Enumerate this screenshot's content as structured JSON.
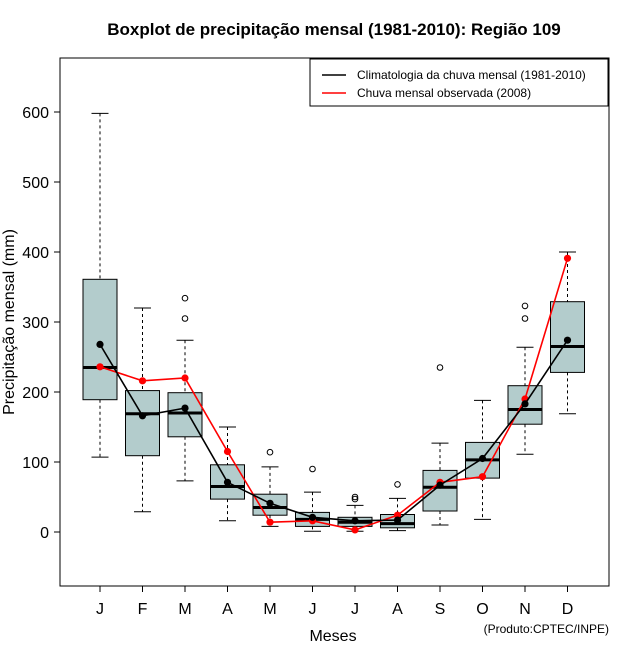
{
  "chart_data": {
    "type": "boxplot",
    "title": "Boxplot de precipitação mensal (1981-2010): Região 109",
    "xlabel": "Meses",
    "ylabel": "Precipitação mensal (mm)",
    "ylim": [
      -75,
      680
    ],
    "yticks": [
      0,
      100,
      200,
      300,
      400,
      500,
      600
    ],
    "categories": [
      "J",
      "F",
      "M",
      "A",
      "M",
      "J",
      "J",
      "A",
      "S",
      "O",
      "N",
      "D"
    ],
    "boxes": [
      {
        "month": "J",
        "whisker_low": 107,
        "q1": 189,
        "median": 235,
        "q3": 361,
        "whisker_high": 598,
        "outliers": []
      },
      {
        "month": "F",
        "whisker_low": 29,
        "q1": 109,
        "median": 169,
        "q3": 202,
        "whisker_high": 320,
        "outliers": []
      },
      {
        "month": "M",
        "whisker_low": 73,
        "q1": 136,
        "median": 170,
        "q3": 199,
        "whisker_high": 274,
        "outliers": [
          305,
          334
        ]
      },
      {
        "month": "A",
        "whisker_low": 16,
        "q1": 47,
        "median": 65,
        "q3": 96,
        "whisker_high": 150,
        "outliers": []
      },
      {
        "month": "M",
        "whisker_low": 8,
        "q1": 24,
        "median": 35,
        "q3": 54,
        "whisker_high": 93,
        "outliers": [
          114
        ]
      },
      {
        "month": "J",
        "whisker_low": 1,
        "q1": 8,
        "median": 18,
        "q3": 28,
        "whisker_high": 57,
        "outliers": [
          90
        ]
      },
      {
        "month": "J",
        "whisker_low": 1,
        "q1": 8,
        "median": 14,
        "q3": 21,
        "whisker_high": 38,
        "outliers": [
          47,
          50
        ]
      },
      {
        "month": "A",
        "whisker_low": 2,
        "q1": 6,
        "median": 12,
        "q3": 25,
        "whisker_high": 48,
        "outliers": [
          68
        ]
      },
      {
        "month": "S",
        "whisker_low": 10,
        "q1": 30,
        "median": 64,
        "q3": 88,
        "whisker_high": 127,
        "outliers": [
          235
        ]
      },
      {
        "month": "O",
        "whisker_low": 18,
        "q1": 77,
        "median": 103,
        "q3": 128,
        "whisker_high": 188,
        "outliers": []
      },
      {
        "month": "N",
        "whisker_low": 111,
        "q1": 154,
        "median": 175,
        "q3": 209,
        "whisker_high": 264,
        "outliers": [
          305,
          323
        ]
      },
      {
        "month": "D",
        "whisker_low": 169,
        "q1": 228,
        "median": 265,
        "q3": 329,
        "whisker_high": 400,
        "outliers": []
      }
    ],
    "series": [
      {
        "name": "Climatologia da chuva mensal (1981-2010)",
        "color": "#000000",
        "values": [
          268,
          166,
          177,
          71,
          41,
          21,
          16,
          17,
          67,
          105,
          183,
          274
        ]
      },
      {
        "name": "Chuva mensal observada (2008)",
        "color": "#ff0000",
        "values": [
          236,
          216,
          220,
          115,
          14,
          16,
          3,
          24,
          71,
          79,
          190,
          391
        ]
      }
    ],
    "box_fill": "#b3cccc",
    "legend_position": "top-right",
    "credit": "(Produto:CPTEC/INPE)"
  }
}
